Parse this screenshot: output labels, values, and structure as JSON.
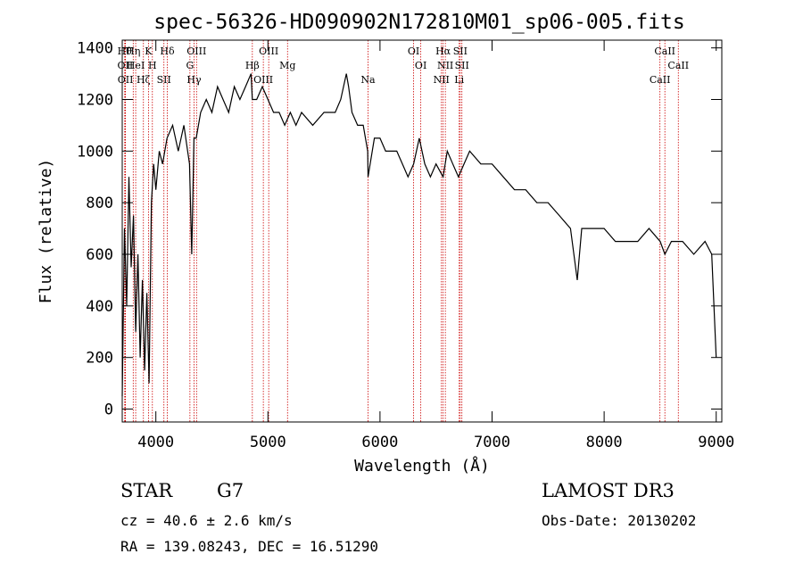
{
  "chart_data": {
    "type": "line",
    "title": "spec-56326-HD090902N172810M01_sp06-005.fits",
    "xlabel": "Wavelength (Å)",
    "ylabel": "Flux (relative)",
    "xlim": [
      3700,
      9050
    ],
    "ylim": [
      -50,
      1430
    ],
    "x_ticks": [
      4000,
      5000,
      6000,
      7000,
      8000,
      9000
    ],
    "y_ticks": [
      0,
      200,
      400,
      600,
      800,
      1000,
      1200,
      1400
    ],
    "grid": false,
    "series": [
      {
        "x": [
          3700,
          3720,
          3740,
          3760,
          3780,
          3800,
          3820,
          3840,
          3860,
          3880,
          3900,
          3920,
          3940,
          3960,
          3980,
          4000,
          4030,
          4060,
          4100,
          4150,
          4200,
          4250,
          4300,
          4320,
          4340,
          4360,
          4400,
          4450,
          4500,
          4550,
          4600,
          4650,
          4700,
          4750,
          4800,
          4850,
          4861,
          4900,
          4950,
          5000,
          5050,
          5100,
          5150,
          5200,
          5250,
          5300,
          5400,
          5500,
          5600,
          5650,
          5700,
          5720,
          5750,
          5800,
          5850,
          5890,
          5893,
          5950,
          6000,
          6050,
          6100,
          6150,
          6200,
          6250,
          6300,
          6350,
          6400,
          6450,
          6500,
          6563,
          6600,
          6650,
          6700,
          6750,
          6800,
          6900,
          7000,
          7100,
          7200,
          7300,
          7400,
          7500,
          7600,
          7700,
          7760,
          7800,
          7900,
          8000,
          8100,
          8200,
          8300,
          8400,
          8500,
          8542,
          8600,
          8700,
          8800,
          8900,
          8960,
          9000
        ],
        "values": [
          50,
          700,
          400,
          900,
          550,
          750,
          300,
          600,
          200,
          500,
          150,
          450,
          100,
          800,
          950,
          850,
          1000,
          950,
          1050,
          1100,
          1000,
          1100,
          950,
          600,
          1050,
          1050,
          1150,
          1200,
          1150,
          1250,
          1200,
          1150,
          1250,
          1200,
          1250,
          1300,
          1200,
          1200,
          1250,
          1200,
          1150,
          1150,
          1100,
          1150,
          1100,
          1150,
          1100,
          1150,
          1150,
          1200,
          1300,
          1250,
          1150,
          1100,
          1100,
          1000,
          900,
          1050,
          1050,
          1000,
          1000,
          1000,
          950,
          900,
          950,
          1050,
          950,
          900,
          950,
          900,
          1000,
          950,
          900,
          950,
          1000,
          950,
          950,
          900,
          850,
          850,
          800,
          800,
          750,
          700,
          500,
          700,
          700,
          700,
          650,
          650,
          650,
          700,
          650,
          600,
          650,
          650,
          600,
          650,
          600,
          200
        ]
      }
    ],
    "lines": [
      {
        "x": 3722,
        "label": "Hθ"
      },
      {
        "x": 3727,
        "label": "OII"
      },
      {
        "x": 3729,
        "label": "OII"
      },
      {
        "x": 3798,
        "label": "Hη"
      },
      {
        "x": 3820,
        "label": "HeI"
      },
      {
        "x": 3889,
        "label": "Hζ"
      },
      {
        "x": 3934,
        "label": "K"
      },
      {
        "x": 3969,
        "label": "H"
      },
      {
        "x": 4072,
        "label": "SII"
      },
      {
        "x": 4102,
        "label": "Hδ"
      },
      {
        "x": 4304,
        "label": "G"
      },
      {
        "x": 4341,
        "label": "Hγ"
      },
      {
        "x": 4363,
        "label": "OIII"
      },
      {
        "x": 4861,
        "label": "Hβ"
      },
      {
        "x": 4959,
        "label": "OIII"
      },
      {
        "x": 5007,
        "label": "OIII"
      },
      {
        "x": 5175,
        "label": "Mg"
      },
      {
        "x": 5893,
        "label": "Na"
      },
      {
        "x": 6300,
        "label": "OI"
      },
      {
        "x": 6364,
        "label": "OI"
      },
      {
        "x": 6548,
        "label": "NII"
      },
      {
        "x": 6563,
        "label": "Hα"
      },
      {
        "x": 6583,
        "label": "NII"
      },
      {
        "x": 6707,
        "label": "Li"
      },
      {
        "x": 6716,
        "label": "SII"
      },
      {
        "x": 6731,
        "label": "SII"
      },
      {
        "x": 8498,
        "label": "CaII"
      },
      {
        "x": 8542,
        "label": "CaII"
      },
      {
        "x": 8662,
        "label": "CaII"
      }
    ]
  },
  "info": {
    "class_label": "STAR",
    "subclass": "G7",
    "cz": "cz = 40.6 ± 2.6 km/s",
    "radec": "RA = 139.08243, DEC =  16.51290",
    "survey": "LAMOST DR3",
    "obsdate": "Obs-Date: 20130202"
  },
  "colors": {
    "line_marker": "#cc0000",
    "spectrum": "#000000",
    "axes": "#000000"
  }
}
